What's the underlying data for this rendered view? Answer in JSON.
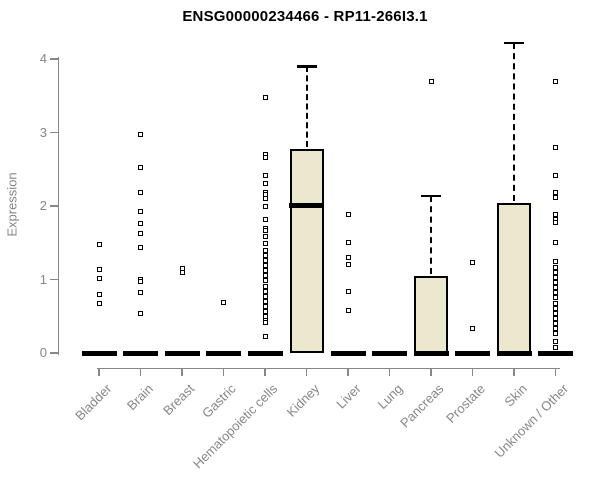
{
  "title": "ENSG00000234466 - RP11-266I3.1",
  "colors": {
    "box_fill": "#ECE8CD",
    "box_border": "#000000",
    "axis_gray": "#878787",
    "point_color": "#000000",
    "background": "#ffffff"
  },
  "chart_data": {
    "type": "boxplot",
    "title": "ENSG00000234466 - RP11-266I3.1",
    "xlabel": "",
    "ylabel": "Expression",
    "ylim": [
      0,
      4.3
    ],
    "yticks": [
      0,
      1,
      2,
      3,
      4
    ],
    "grid": false,
    "legend": "none",
    "categories": [
      "Bladder",
      "Brain",
      "Breast",
      "Gastric",
      "Hematopoietic cells",
      "Kidney",
      "Liver",
      "Lung",
      "Pancreas",
      "Prostate",
      "Skin",
      "Unknown / Other"
    ],
    "series": [
      {
        "name": "Bladder",
        "q1": 0,
        "median": 0,
        "q3": 0,
        "whisker_low": 0,
        "whisker_high": 0,
        "points": [
          1.48,
          1.14,
          1.02,
          0.79,
          0.68
        ]
      },
      {
        "name": "Brain",
        "q1": 0,
        "median": 0,
        "q3": 0,
        "whisker_low": 0,
        "whisker_high": 0,
        "points": [
          2.97,
          2.52,
          2.18,
          1.92,
          1.76,
          1.63,
          1.44,
          1.0,
          0.97,
          0.82,
          0.54
        ]
      },
      {
        "name": "Breast",
        "q1": 0,
        "median": 0,
        "q3": 0,
        "whisker_low": 0,
        "whisker_high": 0,
        "points": [
          1.15,
          1.1
        ]
      },
      {
        "name": "Gastric",
        "q1": 0,
        "median": 0,
        "q3": 0,
        "whisker_low": 0,
        "whisker_high": 0,
        "points": [
          0.69
        ]
      },
      {
        "name": "Hematopoietic cells",
        "q1": 0,
        "median": 0,
        "q3": 0,
        "whisker_low": 0,
        "whisker_high": 0,
        "points": [
          3.48,
          2.7,
          2.66,
          2.42,
          2.31,
          2.19,
          2.15,
          2.1,
          2.0,
          1.81,
          1.7,
          1.66,
          1.58,
          1.49,
          1.4,
          1.33,
          1.26,
          1.19,
          1.12,
          1.05,
          0.98,
          0.91,
          0.84,
          0.77,
          0.7,
          0.63,
          0.56,
          0.5,
          0.44,
          0.41,
          0.22
        ]
      },
      {
        "name": "Kidney",
        "q1": 0,
        "median": 2.01,
        "q3": 2.77,
        "whisker_low": 0,
        "whisker_high": 3.9,
        "points": []
      },
      {
        "name": "Liver",
        "q1": 0,
        "median": 0,
        "q3": 0,
        "whisker_low": 0,
        "whisker_high": 0,
        "points": [
          1.89,
          1.51,
          1.3,
          1.2,
          0.84,
          0.58
        ]
      },
      {
        "name": "Lung",
        "q1": 0,
        "median": 0,
        "q3": 0,
        "whisker_low": 0,
        "whisker_high": 0,
        "points": []
      },
      {
        "name": "Pancreas",
        "q1": 0,
        "median": 0,
        "q3": 1.05,
        "whisker_low": 0,
        "whisker_high": 2.14,
        "points": [
          3.7
        ]
      },
      {
        "name": "Prostate",
        "q1": 0,
        "median": 0,
        "q3": 0,
        "whisker_low": 0,
        "whisker_high": 0,
        "points": [
          1.23,
          0.34
        ]
      },
      {
        "name": "Skin",
        "q1": 0,
        "median": 0,
        "q3": 2.04,
        "whisker_low": 0,
        "whisker_high": 4.22,
        "points": []
      },
      {
        "name": "Unknown / Other",
        "q1": 0,
        "median": 0,
        "q3": 0,
        "whisker_low": 0,
        "whisker_high": 0,
        "points": [
          3.7,
          2.8,
          2.41,
          2.19,
          2.12,
          1.88,
          1.82,
          1.77,
          1.51,
          1.24,
          1.17,
          1.1,
          1.03,
          0.96,
          0.89,
          0.82,
          0.75,
          0.68,
          0.61,
          0.54,
          0.47,
          0.4,
          0.33,
          0.27,
          0.15,
          0.07
        ]
      }
    ]
  }
}
